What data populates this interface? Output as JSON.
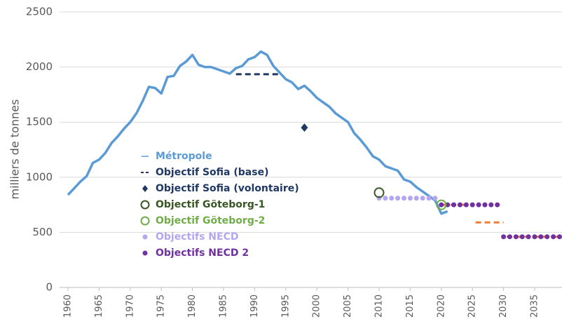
{
  "chart_data": {
    "type": "line",
    "ylabel": "milliers de tonnes",
    "xlim": [
      1960,
      2039
    ],
    "ylim": [
      0,
      2500
    ],
    "xticks": [
      1960,
      1965,
      1970,
      1975,
      1980,
      1985,
      1990,
      1995,
      2000,
      2005,
      2010,
      2015,
      2020,
      2025,
      2030,
      2035
    ],
    "yticks": [
      0,
      500,
      1000,
      1500,
      2000,
      2500
    ],
    "grid": true,
    "series": [
      {
        "name": "Métropole",
        "color": "#5b9bd5",
        "style": "line",
        "x": [
          1960,
          1961,
          1962,
          1963,
          1964,
          1965,
          1966,
          1967,
          1968,
          1969,
          1970,
          1971,
          1972,
          1973,
          1974,
          1975,
          1976,
          1977,
          1978,
          1979,
          1980,
          1981,
          1982,
          1983,
          1984,
          1985,
          1986,
          1987,
          1988,
          1989,
          1990,
          1991,
          1992,
          1993,
          1994,
          1995,
          1996,
          1997,
          1998,
          1999,
          2000,
          2001,
          2002,
          2003,
          2004,
          2005,
          2006,
          2007,
          2008,
          2009,
          2010,
          2011,
          2012,
          2013,
          2014,
          2015,
          2016,
          2017,
          2018,
          2019,
          2020,
          2021
        ],
        "values": [
          840,
          900,
          960,
          1010,
          1130,
          1160,
          1220,
          1310,
          1370,
          1440,
          1500,
          1580,
          1690,
          1820,
          1810,
          1760,
          1910,
          1920,
          2010,
          2050,
          2110,
          2020,
          2000,
          2000,
          1980,
          1960,
          1940,
          1990,
          2010,
          2070,
          2090,
          2140,
          2110,
          2010,
          1950,
          1890,
          1860,
          1800,
          1830,
          1780,
          1720,
          1680,
          1640,
          1580,
          1540,
          1500,
          1400,
          1340,
          1270,
          1190,
          1160,
          1100,
          1080,
          1060,
          980,
          960,
          910,
          870,
          830,
          790,
          670,
          690
        ]
      },
      {
        "name": "Objectif Sofia (base)",
        "color": "#1f3864",
        "style": "dashed",
        "x": [
          1987,
          1994
        ],
        "values": [
          1935,
          1935
        ]
      },
      {
        "name": "Objectif Sofia (volontaire)",
        "color": "#1f3864",
        "style": "diamond",
        "x": [
          1998
        ],
        "values": [
          1450
        ]
      },
      {
        "name": "Objectif Göteborg-1",
        "color": "#375623",
        "style": "circle",
        "x": [
          2010
        ],
        "values": [
          860
        ]
      },
      {
        "name": "Objectif Göteborg-2",
        "color": "#70ad47",
        "style": "circle",
        "x": [
          2020
        ],
        "values": [
          750
        ]
      },
      {
        "color": "#ed7d31",
        "style": "dashed",
        "x": [
          2020,
          2024.3,
          null,
          2025.5,
          2030,
          null,
          2030.5,
          2039
        ],
        "values": [
          750,
          750,
          null,
          590,
          590,
          null,
          460,
          460
        ]
      },
      {
        "name": "Objectifs NECD",
        "color": "#b4a7f0",
        "style": "dots",
        "x": [
          2010,
          2011,
          2012,
          2013,
          2014,
          2015,
          2016,
          2017,
          2018,
          2019
        ],
        "values": [
          810,
          810,
          810,
          810,
          810,
          810,
          810,
          810,
          810,
          810
        ]
      },
      {
        "name": "Objectifs NECD 2",
        "color": "#7030a0",
        "style": "dots",
        "x": [
          2020,
          2021,
          2022,
          2023,
          2024,
          2025,
          2026,
          2027,
          2028,
          2029,
          2030,
          2031,
          2032,
          2033,
          2034,
          2035,
          2036,
          2037,
          2038,
          2039
        ],
        "values": [
          750,
          750,
          750,
          750,
          750,
          750,
          750,
          750,
          750,
          750,
          460,
          460,
          460,
          460,
          460,
          460,
          460,
          460,
          460,
          460
        ]
      }
    ]
  }
}
